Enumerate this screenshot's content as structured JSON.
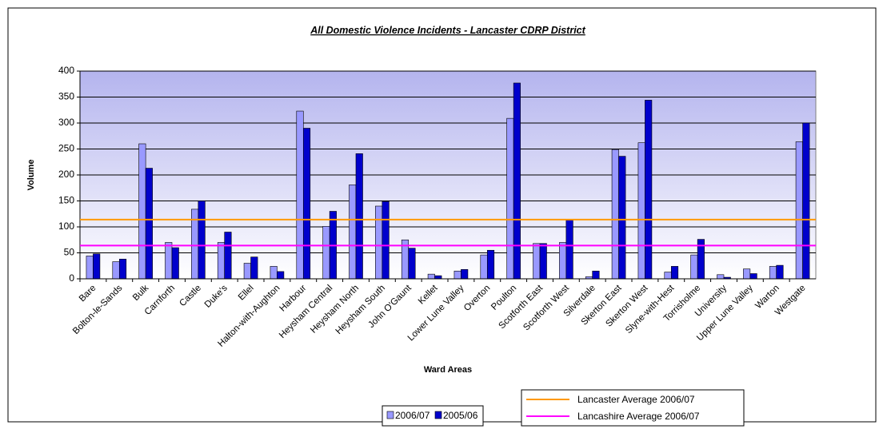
{
  "chart_data": {
    "type": "bar",
    "title": "All Domestic Violence Incidents - Lancaster CDRP District",
    "y_label": "Volume",
    "x_label": "Ward Areas",
    "categories": [
      "Bare",
      "Bolton-le-Sands",
      "Bulk",
      "Carnforth",
      "Castle",
      "Duke's",
      "Ellel",
      "Halton-with-Aughton",
      "Harbour",
      "Heysham Central",
      "Heysham North",
      "Heysham South",
      "John O'Gaunt",
      "Kellet",
      "Lower Lune Valley",
      "Overton",
      "Poulton",
      "Scotforth East",
      "Scotforth West",
      "Silverdale",
      "Skerton East",
      "Skerton West",
      "Slyne-with-Hest",
      "Torrisholme",
      "University",
      "Upper Lune Valley",
      "Warton",
      "Westgate"
    ],
    "series": [
      {
        "name": "2006/07",
        "color": "#9999ff",
        "values": [
          44,
          33,
          260,
          70,
          134,
          70,
          30,
          24,
          323,
          101,
          181,
          140,
          75,
          9,
          15,
          46,
          309,
          68,
          70,
          4,
          249,
          262,
          13,
          46,
          8,
          19,
          24,
          264
        ]
      },
      {
        "name": "2005/06",
        "color": "#0000cc",
        "values": [
          48,
          38,
          213,
          60,
          150,
          90,
          42,
          14,
          290,
          130,
          241,
          149,
          59,
          6,
          18,
          55,
          377,
          68,
          113,
          15,
          236,
          344,
          24,
          76,
          3,
          10,
          26,
          300
        ]
      }
    ],
    "reference_lines": [
      {
        "name": "Lancaster Average 2006/07",
        "value": 114,
        "color": "#ff9900"
      },
      {
        "name": "Lancashire Average 2006/07",
        "value": 64,
        "color": "#ff00ff"
      }
    ],
    "ylim": [
      0,
      400
    ],
    "yticks": [
      0,
      50,
      100,
      150,
      200,
      250,
      300,
      350,
      400
    ],
    "grid": true
  }
}
